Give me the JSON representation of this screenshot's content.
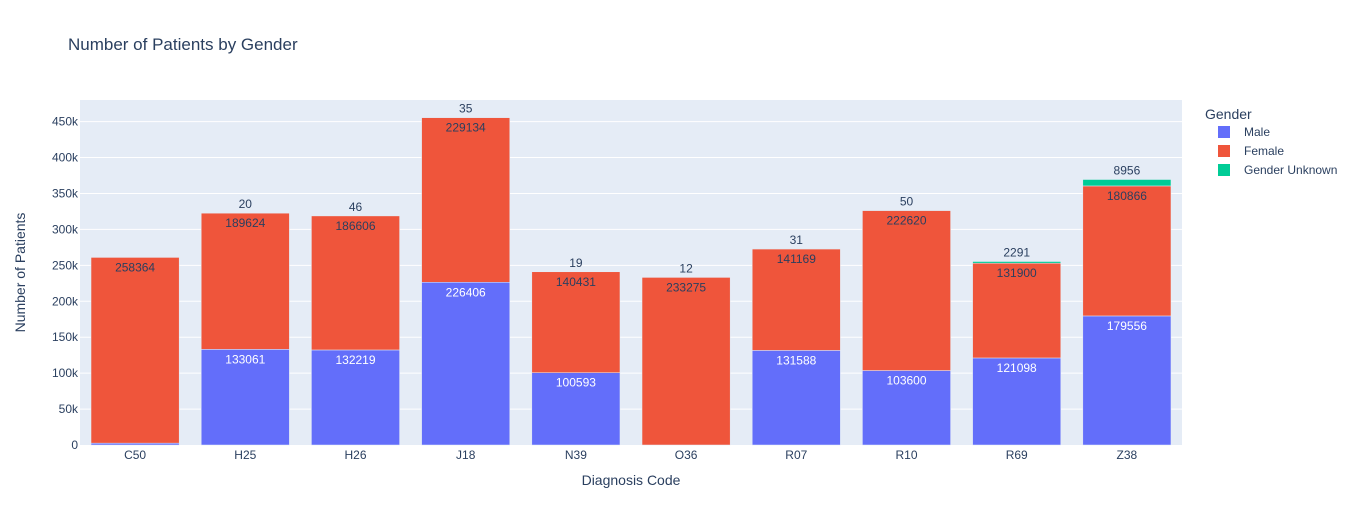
{
  "chart_data": {
    "type": "bar",
    "stacked": true,
    "title": "Number of Patients by Gender",
    "xlabel": "Diagnosis Code",
    "ylabel": "Number of Patients",
    "ylim": [
      0,
      480000
    ],
    "yticks": [
      0,
      50000,
      100000,
      150000,
      200000,
      250000,
      300000,
      350000,
      400000,
      450000
    ],
    "ytick_labels": [
      "0",
      "50k",
      "100k",
      "150k",
      "200k",
      "250k",
      "300k",
      "350k",
      "400k",
      "450k"
    ],
    "categories": [
      "C50",
      "H25",
      "H26",
      "J18",
      "N39",
      "O36",
      "R07",
      "R10",
      "R69",
      "Z38"
    ],
    "grid": true,
    "legend_title": "Gender",
    "legend_position": "top-right",
    "series": [
      {
        "name": "Male",
        "color": "#636efa",
        "label_color": "#ffffff",
        "values": [
          2600,
          133061,
          132219,
          226406,
          100593,
          0,
          131588,
          103600,
          121098,
          179556
        ],
        "labels": [
          "",
          "133061",
          "132219",
          "226406",
          "100593",
          "",
          "131588",
          "103600",
          "121098",
          "179556"
        ]
      },
      {
        "name": "Female",
        "color": "#ef553b",
        "label_color": "#2a3f5f",
        "values": [
          258364,
          189624,
          186606,
          229134,
          140431,
          233275,
          141169,
          222620,
          131900,
          180866
        ],
        "labels": [
          "258364",
          "189624",
          "186606",
          "229134",
          "140431",
          "233275",
          "141169",
          "222620",
          "131900",
          "180866"
        ]
      },
      {
        "name": "Gender Unknown",
        "color": "#00cc96",
        "label_color": "#2a3f5f",
        "values": [
          0,
          20,
          46,
          35,
          19,
          12,
          31,
          50,
          2291,
          8956
        ],
        "labels": [
          "",
          "20",
          "46",
          "35",
          "19",
          "12",
          "31",
          "50",
          "2291",
          "8956"
        ]
      }
    ]
  }
}
